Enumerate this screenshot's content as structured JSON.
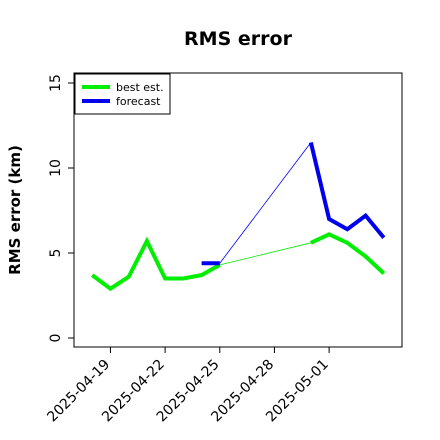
{
  "chart_data": {
    "type": "line",
    "title": "RMS error",
    "ylabel": "RMS error (km)",
    "xlabel": "",
    "ylim": [
      0,
      15
    ],
    "xlim": [
      "2025-04-17",
      "2025-05-05"
    ],
    "yticks": [
      0,
      5,
      10,
      15
    ],
    "xticks": [
      "2025-04-19",
      "2025-04-22",
      "2025-04-25",
      "2025-04-28",
      "2025-05-01"
    ],
    "legend": {
      "placement": "top-left",
      "entries": [
        "best est.",
        "forecast"
      ]
    },
    "grid": false,
    "series": [
      {
        "name": "best est.",
        "color": "#00ee00",
        "segments": [
          {
            "x": [
              "2025-04-18",
              "2025-04-19",
              "2025-04-20",
              "2025-04-21",
              "2025-04-22",
              "2025-04-23",
              "2025-04-24",
              "2025-04-25"
            ],
            "y": [
              3.7,
              2.9,
              3.6,
              5.7,
              3.5,
              3.5,
              3.7,
              4.3
            ]
          },
          {
            "x": [
              "2025-04-30",
              "2025-05-01",
              "2025-05-02",
              "2025-05-03",
              "2025-05-04"
            ],
            "y": [
              5.6,
              6.1,
              5.6,
              4.8,
              3.8
            ]
          }
        ],
        "connector": {
          "x": [
            "2025-04-25",
            "2025-04-30"
          ],
          "y": [
            4.3,
            5.6
          ]
        }
      },
      {
        "name": "forecast",
        "color": "#0000ee",
        "segments": [
          {
            "x": [
              "2025-04-24",
              "2025-04-25"
            ],
            "y": [
              4.4,
              4.4
            ]
          },
          {
            "x": [
              "2025-04-30",
              "2025-05-01",
              "2025-05-02",
              "2025-05-03",
              "2025-05-04"
            ],
            "y": [
              11.5,
              7.0,
              6.4,
              7.2,
              5.9
            ]
          }
        ],
        "connector": {
          "x": [
            "2025-04-25",
            "2025-04-30"
          ],
          "y": [
            4.4,
            11.5
          ]
        }
      }
    ]
  }
}
